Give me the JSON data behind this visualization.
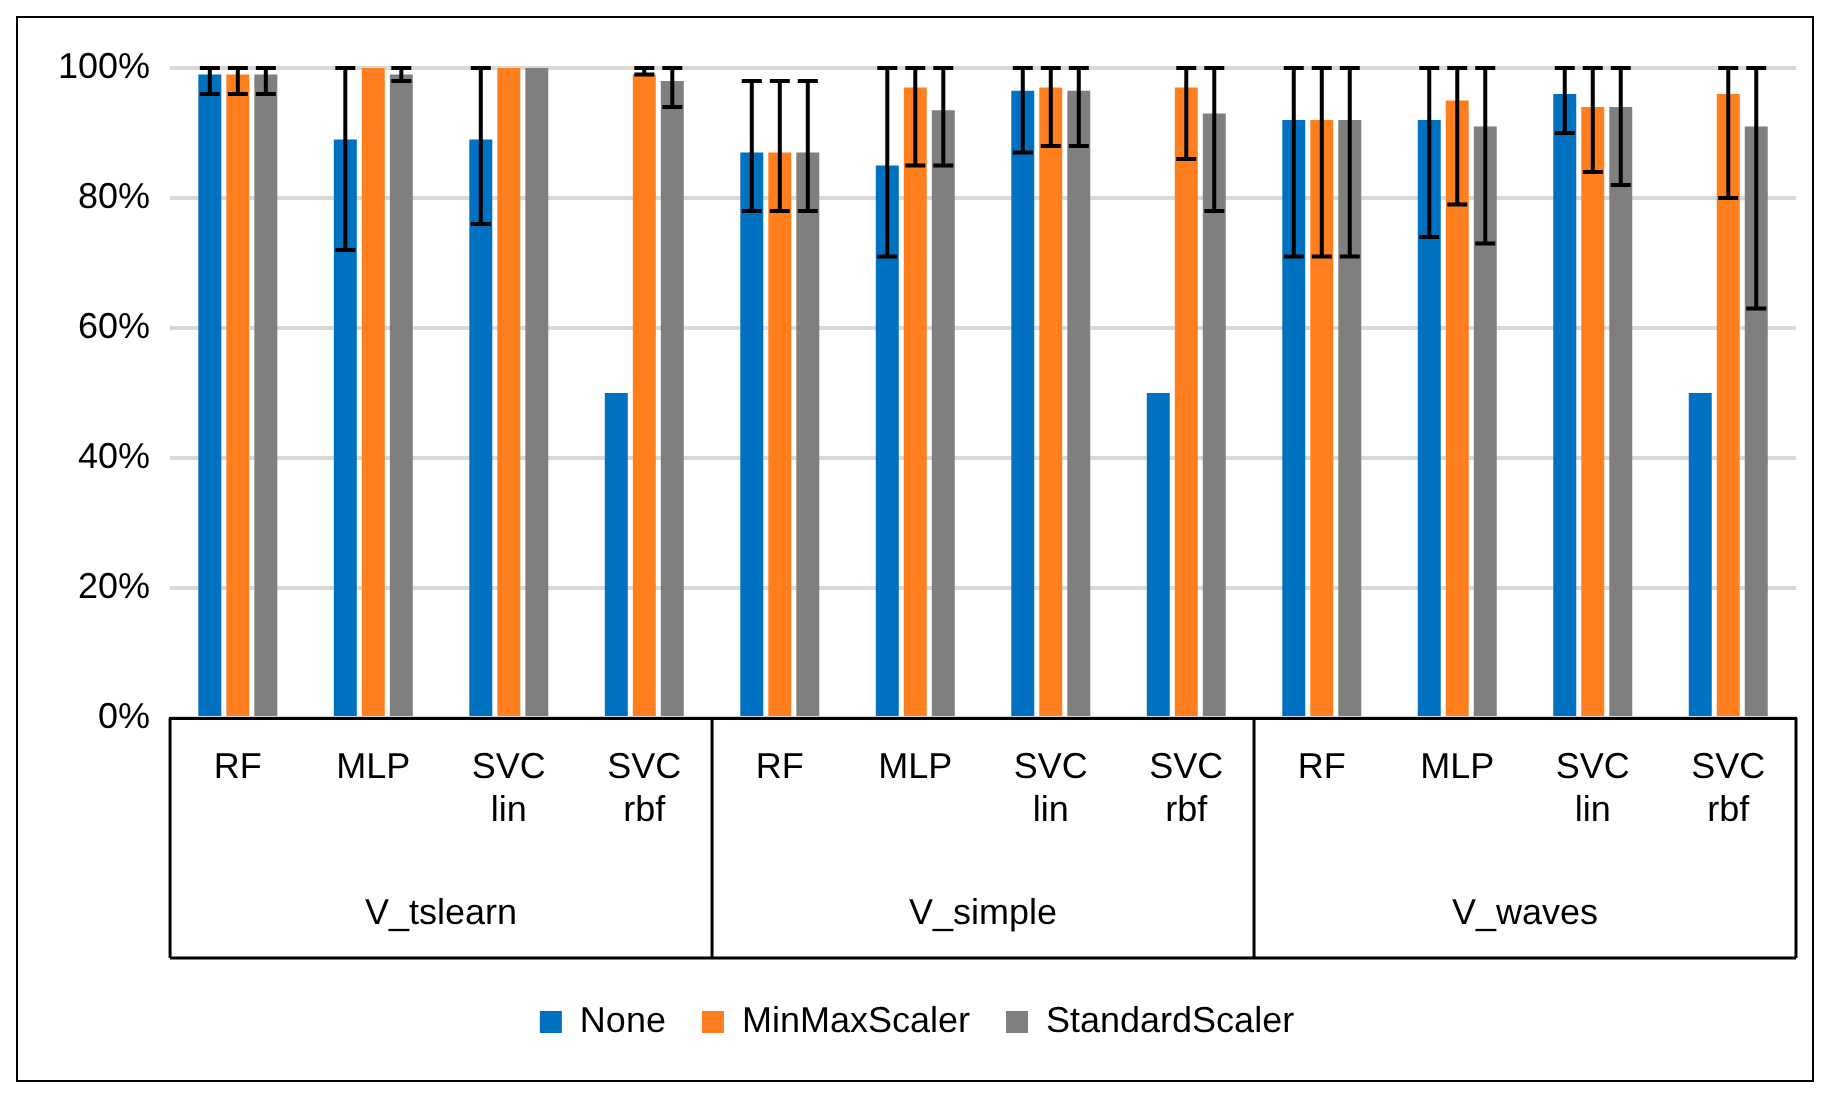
{
  "chart_data": {
    "type": "bar",
    "categories": [
      "RF",
      "MLP",
      "SVC lin",
      "SVC rbf",
      "RF",
      "MLP",
      "SVC lin",
      "SVC rbf",
      "RF",
      "MLP",
      "SVC lin",
      "SVC rbf"
    ],
    "annotations": [
      "V_tslearn",
      "V_simple",
      "V_waves"
    ],
    "series": [
      {
        "name": "None",
        "color": "#0070c0",
        "values": [
          99,
          89,
          89,
          50,
          87,
          85,
          96.5,
          50,
          92,
          92,
          96,
          50
        ],
        "errors": [
          [
            96,
            100
          ],
          [
            72,
            100
          ],
          [
            76,
            100
          ],
          null,
          [
            78,
            98
          ],
          [
            71,
            100
          ],
          [
            87,
            100
          ],
          null,
          [
            71,
            100
          ],
          [
            74,
            100
          ],
          [
            90,
            100
          ],
          null
        ]
      },
      {
        "name": "MinMaxScaler",
        "color": "#ff7f1f",
        "values": [
          99,
          100,
          100,
          99,
          87,
          97,
          97,
          97,
          92,
          95,
          94,
          96
        ],
        "errors": [
          [
            96,
            100
          ],
          null,
          null,
          [
            99,
            100
          ],
          [
            78,
            98
          ],
          [
            85,
            100
          ],
          [
            88,
            100
          ],
          [
            86,
            100
          ],
          [
            71,
            100
          ],
          [
            79,
            100
          ],
          [
            84,
            100
          ],
          [
            80,
            100
          ]
        ]
      },
      {
        "name": "StandardScaler",
        "color": "#7f7f7f",
        "values": [
          99,
          99,
          100,
          98,
          87,
          93.5,
          96.5,
          93,
          92,
          91,
          94,
          91
        ],
        "errors": [
          [
            96,
            100
          ],
          [
            98,
            100
          ],
          null,
          [
            94,
            100
          ],
          [
            78,
            98
          ],
          [
            85,
            100
          ],
          [
            88,
            100
          ],
          [
            78,
            100
          ],
          [
            71,
            100
          ],
          [
            73,
            100
          ],
          [
            82,
            100
          ],
          [
            63,
            100
          ]
        ]
      }
    ],
    "ylim": [
      0,
      100
    ],
    "yticks": [
      {
        "value": 0,
        "label": "0%"
      },
      {
        "value": 20,
        "label": "20%"
      },
      {
        "value": 40,
        "label": "40%"
      },
      {
        "value": 60,
        "label": "60%"
      },
      {
        "value": 80,
        "label": "80%"
      },
      {
        "value": 100,
        "label": "100%"
      }
    ],
    "grid": "y",
    "legend": "bottom"
  }
}
